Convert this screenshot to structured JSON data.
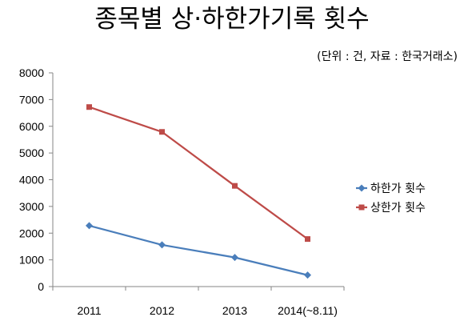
{
  "chart_data": {
    "type": "line",
    "title": "종목별 상·하한가기록 횟수",
    "subtitle": "(단위 : 건, 자료 : 한국거래소)",
    "categories": [
      "2011",
      "2012",
      "2013",
      "2014(~8.11)"
    ],
    "ylim": [
      0,
      8000
    ],
    "yticks": [
      0,
      1000,
      2000,
      3000,
      4000,
      5000,
      6000,
      7000,
      8000
    ],
    "grid": false,
    "legend_position": "right",
    "series": [
      {
        "name": "하한가 횟수",
        "color": "#4a7ebb",
        "marker": "diamond",
        "values": [
          2280,
          1560,
          1090,
          430
        ]
      },
      {
        "name": "상한가 횟수",
        "color": "#be4b48",
        "marker": "square",
        "values": [
          6720,
          5790,
          3770,
          1780
        ]
      }
    ]
  }
}
